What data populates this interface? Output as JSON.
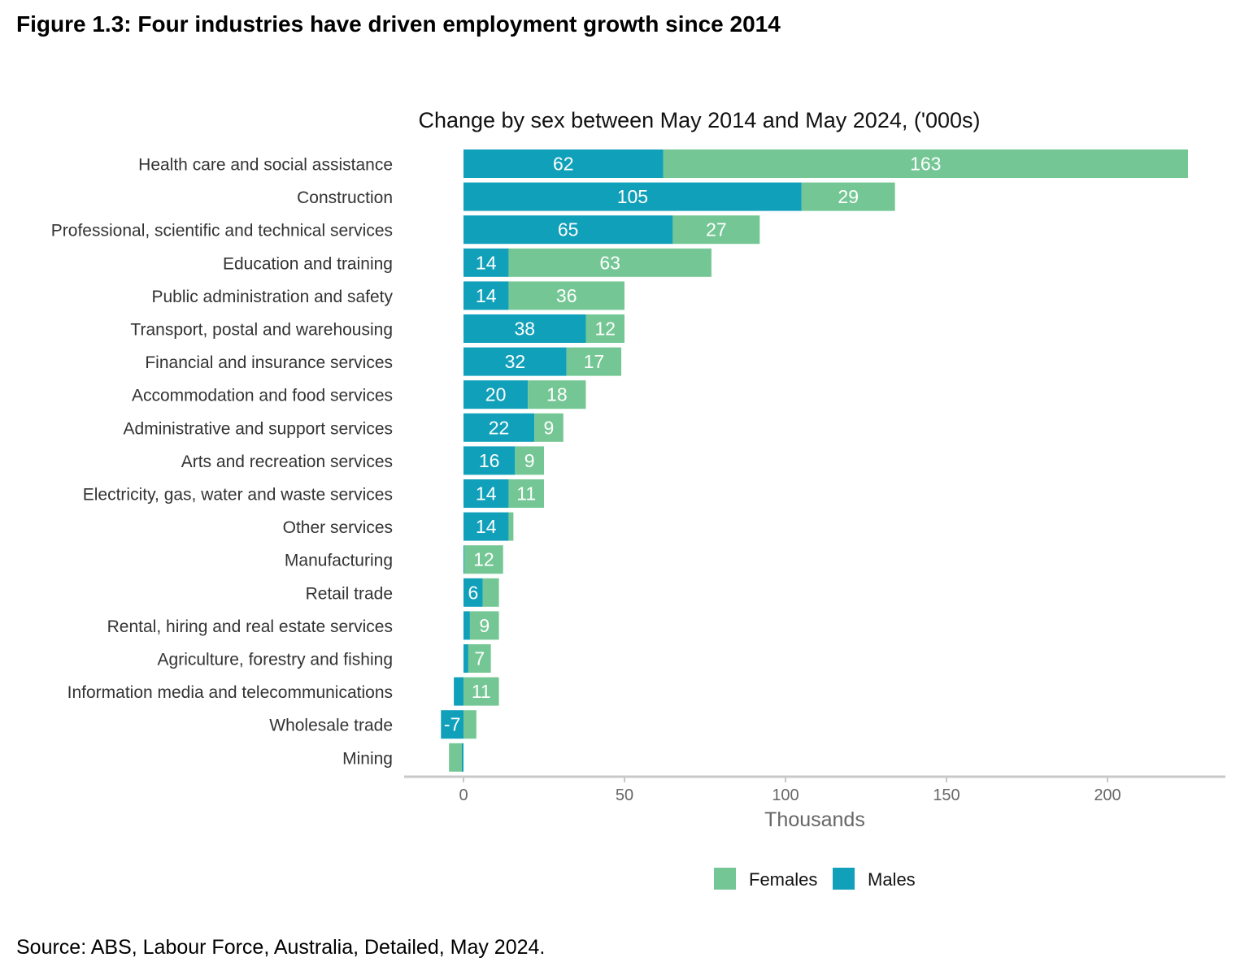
{
  "title": "Figure 1.3: Four industries have driven employment growth since 2014",
  "source": "Source: ABS, Labour Force, Australia, Detailed, May 2024.",
  "chart_data": {
    "type": "bar",
    "orientation": "horizontal",
    "stacked": true,
    "title": "Change by sex between May 2014 and May 2024, ('000s)",
    "xlabel": "Thousands",
    "xlim": [
      -18,
      237
    ],
    "xticks": [
      0,
      50,
      100,
      150,
      200
    ],
    "grid": false,
    "legend_position": "bottom",
    "categories": [
      "Health care and social assistance",
      "Construction",
      "Professional, scientific and technical services",
      "Education and training",
      "Public administration and safety",
      "Transport, postal and warehousing",
      "Financial and insurance services",
      "Accommodation and food services",
      "Administrative and support services",
      "Arts and recreation services",
      "Electricity, gas, water and waste services",
      "Other services",
      "Manufacturing",
      "Retail trade",
      "Rental, hiring and real estate services",
      "Agriculture, forestry and fishing",
      "Information media and telecommunications",
      "Wholesale trade",
      "Mining"
    ],
    "series": [
      {
        "name": "Males",
        "color": "#11A0BA",
        "values": [
          62,
          105,
          65,
          14,
          14,
          38,
          32,
          20,
          22,
          16,
          14,
          14,
          0.3,
          6,
          2,
          1.5,
          -3,
          -7,
          -0.5
        ]
      },
      {
        "name": "Females",
        "color": "#74C794",
        "values": [
          163,
          29,
          27,
          63,
          36,
          12,
          17,
          18,
          9,
          9,
          11,
          1.5,
          12,
          5,
          9,
          7,
          11,
          4,
          -4
        ]
      }
    ],
    "legend": [
      "Females",
      "Males"
    ]
  }
}
